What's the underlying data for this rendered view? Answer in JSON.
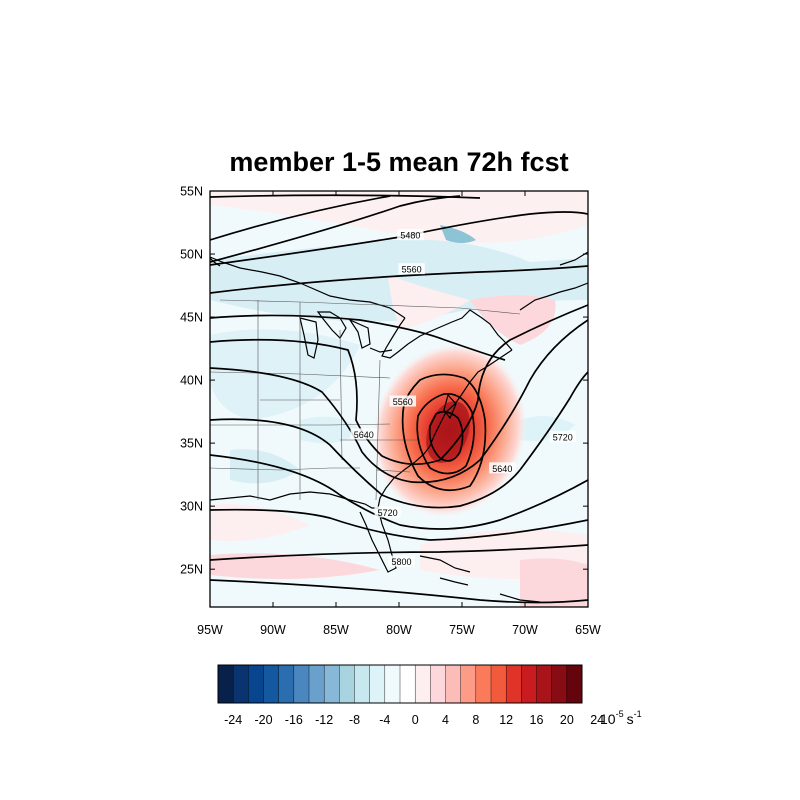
{
  "title": "member 1-5 mean 72h fcst",
  "map": {
    "lon_range": [
      -95,
      -65
    ],
    "lat_range": [
      22,
      55
    ],
    "lat_ticks": [
      {
        "value": 55,
        "label": "55N"
      },
      {
        "value": 50,
        "label": "50N"
      },
      {
        "value": 45,
        "label": "45N"
      },
      {
        "value": 40,
        "label": "40N"
      },
      {
        "value": 35,
        "label": "35N"
      },
      {
        "value": 30,
        "label": "30N"
      },
      {
        "value": 25,
        "label": "25N"
      }
    ],
    "lon_ticks": [
      {
        "value": -95,
        "label": "95W"
      },
      {
        "value": -90,
        "label": "90W"
      },
      {
        "value": -85,
        "label": "85W"
      },
      {
        "value": -80,
        "label": "80W"
      },
      {
        "value": -75,
        "label": "75W"
      },
      {
        "value": -70,
        "label": "70W"
      },
      {
        "value": -65,
        "label": "65W"
      }
    ],
    "contour_labels": [
      {
        "text": "5480",
        "lon": -79.1,
        "lat": 51.5
      },
      {
        "text": "5560",
        "lon": -79.0,
        "lat": 48.8
      },
      {
        "text": "5560",
        "lon": -79.7,
        "lat": 38.3
      },
      {
        "text": "5640",
        "lon": -82.8,
        "lat": 35.7
      },
      {
        "text": "5640",
        "lon": -71.8,
        "lat": 33.0
      },
      {
        "text": "5720",
        "lon": -80.9,
        "lat": 29.5
      },
      {
        "text": "5720",
        "lon": -67.0,
        "lat": 35.5
      },
      {
        "text": "5800",
        "lon": -79.8,
        "lat": 25.6
      }
    ],
    "vorticity_max": {
      "lon": -76.0,
      "lat": 36.0
    }
  },
  "colorbar": {
    "labels": [
      "-24",
      "-20",
      "-16",
      "-12",
      "-8",
      "-4",
      "0",
      "4",
      "8",
      "12",
      "16",
      "20",
      "24"
    ],
    "colors": [
      "#08214a",
      "#0a3470",
      "#08458f",
      "#1458a0",
      "#2a6eb0",
      "#4a87bf",
      "#6aa0cc",
      "#88b8d8",
      "#a8d4e0",
      "#c8e8f0",
      "#def3f8",
      "#f0fafc",
      "#ffffff",
      "#fdeef0",
      "#fcd8dc",
      "#fcbcb8",
      "#fc9c86",
      "#fb7a5a",
      "#f25a3c",
      "#e03428",
      "#c81c20",
      "#a8141a",
      "#880c14",
      "#64040c"
    ],
    "unit_base": "10",
    "unit_exp": "-5",
    "unit_tail": "s",
    "unit_tail_exp": "-1"
  }
}
